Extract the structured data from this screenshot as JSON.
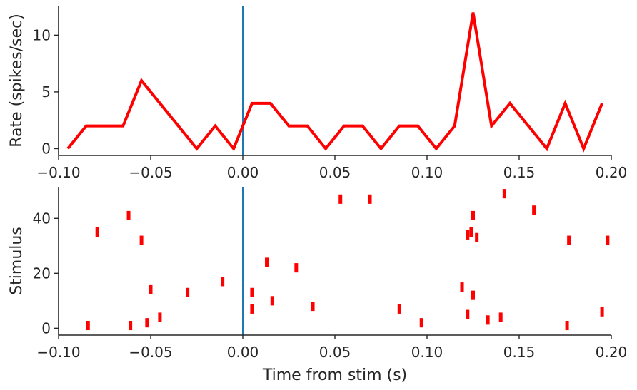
{
  "chart_data": [
    {
      "type": "line",
      "name": "rate",
      "title": "",
      "xlabel": "",
      "ylabel": "Rate (spikes/sec)",
      "xlim": [
        -0.1,
        0.2
      ],
      "ylim": [
        -0.6,
        12.6
      ],
      "xticks": [
        -0.1,
        -0.05,
        0.0,
        0.05,
        0.1,
        0.15,
        0.2
      ],
      "xtick_labels": [
        "−0.10",
        "−0.05",
        "0.00",
        "0.05",
        "0.10",
        "0.15",
        "0.20"
      ],
      "yticks": [
        0,
        5,
        10
      ],
      "ytick_labels": [
        "0",
        "5",
        "10"
      ],
      "stim_line_x": 0.0,
      "stim_line_color": "#1f77b4",
      "series": [
        {
          "name": "rate",
          "color": "#ff0000",
          "x": [
            -0.095,
            -0.085,
            -0.075,
            -0.065,
            -0.055,
            -0.045,
            -0.035,
            -0.025,
            -0.015,
            -0.005,
            0.005,
            0.015,
            0.025,
            0.035,
            0.045,
            0.055,
            0.065,
            0.075,
            0.085,
            0.095,
            0.105,
            0.115,
            0.125,
            0.135,
            0.145,
            0.155,
            0.165,
            0.175,
            0.185,
            0.195
          ],
          "values": [
            0,
            2,
            2,
            2,
            6,
            4,
            2,
            0,
            2,
            0,
            4,
            4,
            2,
            2,
            0,
            2,
            2,
            0,
            2,
            2,
            0,
            2,
            12,
            2,
            4,
            2,
            0,
            4,
            0,
            4
          ]
        }
      ]
    },
    {
      "type": "scatter",
      "name": "raster",
      "title": "",
      "xlabel": "Time from stim (s)",
      "ylabel": "Stimulus",
      "xlim": [
        -0.1,
        0.2
      ],
      "ylim": [
        -2.5,
        51.5
      ],
      "xticks": [
        -0.1,
        -0.05,
        0.0,
        0.05,
        0.1,
        0.15,
        0.2
      ],
      "xtick_labels": [
        "−0.10",
        "−0.05",
        "0.00",
        "0.05",
        "0.10",
        "0.15",
        "0.20"
      ],
      "yticks": [
        0,
        20,
        40
      ],
      "ytick_labels": [
        "0",
        "20",
        "40"
      ],
      "stim_line_x": 0.0,
      "stim_line_color": "#1f77b4",
      "marker": "vertical-line",
      "marker_color": "#ff0000",
      "points": [
        {
          "x": -0.084,
          "y": 1
        },
        {
          "x": -0.061,
          "y": 1
        },
        {
          "x": -0.052,
          "y": 2
        },
        {
          "x": -0.045,
          "y": 4
        },
        {
          "x": -0.05,
          "y": 14
        },
        {
          "x": -0.03,
          "y": 13
        },
        {
          "x": -0.079,
          "y": 35
        },
        {
          "x": -0.062,
          "y": 41
        },
        {
          "x": -0.055,
          "y": 32
        },
        {
          "x": -0.011,
          "y": 17
        },
        {
          "x": 0.005,
          "y": 7
        },
        {
          "x": 0.005,
          "y": 13
        },
        {
          "x": 0.013,
          "y": 24
        },
        {
          "x": 0.016,
          "y": 10
        },
        {
          "x": 0.029,
          "y": 22
        },
        {
          "x": 0.038,
          "y": 8
        },
        {
          "x": 0.053,
          "y": 47
        },
        {
          "x": 0.069,
          "y": 47
        },
        {
          "x": 0.085,
          "y": 7
        },
        {
          "x": 0.097,
          "y": 2
        },
        {
          "x": 0.119,
          "y": 15
        },
        {
          "x": 0.122,
          "y": 5
        },
        {
          "x": 0.122,
          "y": 34
        },
        {
          "x": 0.124,
          "y": 35
        },
        {
          "x": 0.125,
          "y": 12
        },
        {
          "x": 0.125,
          "y": 41
        },
        {
          "x": 0.127,
          "y": 33
        },
        {
          "x": 0.133,
          "y": 3
        },
        {
          "x": 0.14,
          "y": 4
        },
        {
          "x": 0.142,
          "y": 49
        },
        {
          "x": 0.158,
          "y": 43
        },
        {
          "x": 0.176,
          "y": 1
        },
        {
          "x": 0.177,
          "y": 32
        },
        {
          "x": 0.195,
          "y": 6
        },
        {
          "x": 0.198,
          "y": 32
        }
      ]
    }
  ]
}
